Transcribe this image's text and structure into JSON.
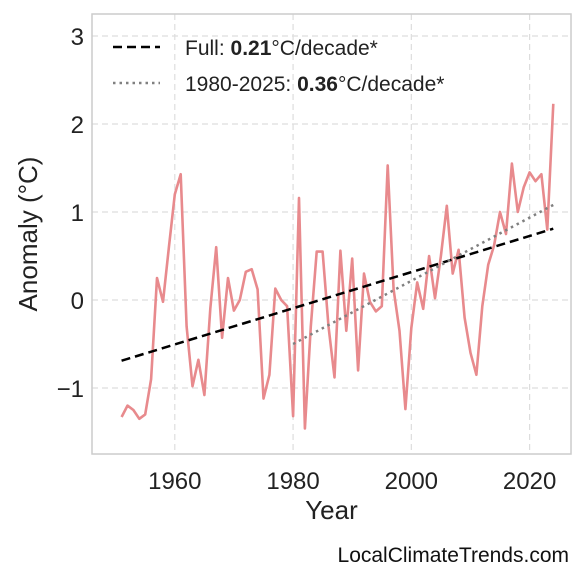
{
  "chart_data": {
    "type": "line",
    "xlabel": "Year",
    "ylabel": "Anomaly (°C)",
    "xlim": [
      1946,
      2027
    ],
    "ylim": [
      -1.75,
      3.25
    ],
    "xticks": [
      1960,
      1980,
      2000,
      2020
    ],
    "yticks": [
      -1,
      0,
      1,
      2,
      3
    ],
    "ytick_labels": [
      "−1",
      "0",
      "1",
      "2",
      "3"
    ],
    "grid": true,
    "legend_position": "top-left",
    "colors": {
      "series": "#e88a8d",
      "full_trend": "#000000",
      "recent_trend": "#808080",
      "grid": "#dddddd",
      "axes": "#cccccc"
    },
    "series": [
      {
        "x": [
          1951,
          1952,
          1953,
          1954,
          1955,
          1956,
          1957,
          1958,
          1959,
          1960,
          1961,
          1962,
          1963,
          1964,
          1965,
          1966,
          1967,
          1968,
          1969,
          1970,
          1971,
          1972,
          1973,
          1974,
          1975,
          1976,
          1977,
          1978,
          1979,
          1980,
          1981,
          1982,
          1983,
          1984,
          1985,
          1986,
          1987,
          1988,
          1989,
          1990,
          1991,
          1992,
          1993,
          1994,
          1995,
          1996,
          1997,
          1998,
          1999,
          2000,
          2001,
          2002,
          2003,
          2004,
          2005,
          2006,
          2007,
          2008,
          2009,
          2010,
          2011,
          2012,
          2013,
          2014,
          2015,
          2016,
          2017,
          2018,
          2019,
          2020,
          2021,
          2022,
          2023,
          2024
        ],
        "y": [
          -1.33,
          -1.2,
          -1.25,
          -1.35,
          -1.3,
          -0.9,
          0.25,
          -0.02,
          0.6,
          1.2,
          1.43,
          -0.3,
          -0.98,
          -0.68,
          -1.08,
          -0.1,
          0.6,
          -0.43,
          0.25,
          -0.12,
          0.0,
          0.32,
          0.35,
          0.12,
          -1.12,
          -0.85,
          0.13,
          0.0,
          -0.07,
          -1.32,
          1.16,
          -1.46,
          -0.3,
          0.55,
          0.55,
          -0.3,
          -0.88,
          0.56,
          -0.35,
          0.47,
          -0.8,
          0.3,
          -0.02,
          -0.13,
          -0.07,
          1.53,
          0.12,
          -0.35,
          -1.24,
          -0.32,
          0.2,
          -0.1,
          0.5,
          0.02,
          0.5,
          1.07,
          0.3,
          0.57,
          -0.2,
          -0.6,
          -0.85,
          -0.07,
          0.4,
          0.62,
          1.0,
          0.75,
          1.55,
          1.0,
          1.28,
          1.45,
          1.35,
          1.43,
          0.8,
          2.23
        ]
      }
    ],
    "trend_full": {
      "x": [
        1951,
        2024
      ],
      "y": [
        -0.69,
        0.81
      ],
      "rate": "0.21"
    },
    "trend_recent": {
      "x": [
        1980,
        2024
      ],
      "y": [
        -0.5,
        1.08
      ],
      "rate": "0.36"
    },
    "legend": [
      {
        "prefix": "Full: ",
        "rate": "0.21",
        "suffix": "°C/decade*"
      },
      {
        "prefix": "1980-2025: ",
        "rate": "0.36",
        "suffix": "°C/decade*"
      }
    ]
  },
  "credit": "LocalClimateTrends.com"
}
